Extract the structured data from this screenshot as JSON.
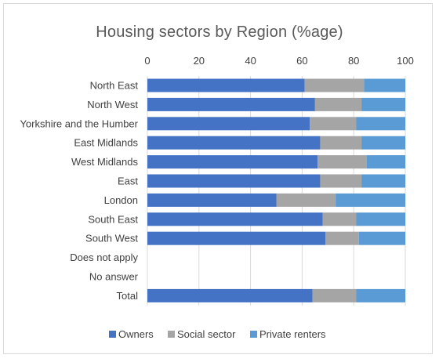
{
  "chart_data": {
    "type": "bar",
    "orientation": "horizontal",
    "stacked": true,
    "title": "Housing sectors by Region (%age)",
    "xlim": [
      0,
      100
    ],
    "xticks": [
      0,
      20,
      40,
      60,
      80,
      100
    ],
    "axis_position": "top",
    "grid": true,
    "legend_position": "bottom",
    "categories": [
      "North East",
      "North West",
      "Yorkshire and the Humber",
      "East Midlands",
      "West Midlands",
      "East",
      "London",
      "South East",
      "South West",
      "Does not apply",
      "No answer",
      "Total"
    ],
    "series": [
      {
        "name": "Owners",
        "color": "#4472c4",
        "values": [
          61,
          65,
          63,
          67,
          66,
          67,
          50,
          68,
          69,
          0,
          0,
          64
        ]
      },
      {
        "name": "Social sector",
        "color": "#a5a5a5",
        "values": [
          23,
          18,
          18,
          16,
          19,
          16,
          23,
          13,
          13,
          0,
          0,
          17
        ]
      },
      {
        "name": "Private renters",
        "color": "#5b9bd5",
        "values": [
          16,
          17,
          19,
          17,
          15,
          17,
          27,
          19,
          18,
          0,
          0,
          19
        ]
      }
    ]
  }
}
